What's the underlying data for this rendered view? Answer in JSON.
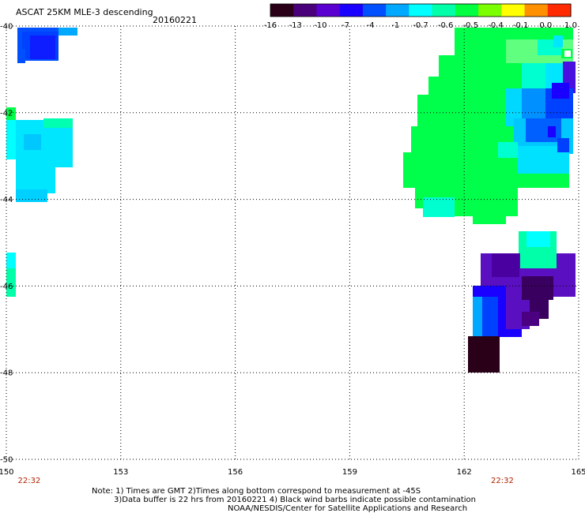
{
  "header": {
    "title": "ASCAT 25KM MLE-3 descending",
    "date": "20160221"
  },
  "colorbar": {
    "labels": [
      "-16",
      "-13",
      "-10",
      "-7",
      "-4",
      "-1",
      "-0.7",
      "-0.6",
      "-0.5",
      "-0.4",
      "-0.1",
      "0.0",
      "1.0"
    ],
    "colors": [
      "#2a0019",
      "#4a007a",
      "#5a00d0",
      "#1a00ff",
      "#0050ff",
      "#00a8ff",
      "#00ffff",
      "#00ffa8",
      "#00ff40",
      "#7cff00",
      "#ffff00",
      "#ff9000",
      "#ff2a00"
    ]
  },
  "map": {
    "lon_ticks": [
      "150",
      "153",
      "156",
      "159",
      "162",
      "165"
    ],
    "lat_ticks": [
      "-40",
      "-42",
      "-44",
      "-46",
      "-48",
      "-50"
    ],
    "lon_range": [
      150,
      165
    ],
    "lat_range": [
      -40,
      -50
    ],
    "times": [
      {
        "label": "22:32",
        "color": "#b02000",
        "lon": 150.6
      },
      {
        "label": "22:32",
        "color": "#b02000",
        "lon": 163.0
      }
    ]
  },
  "swaths": {
    "legend_colors": {
      "green": "#00ff4a",
      "cyan": "#00ffff",
      "light_blue": "#00b4ff",
      "blue": "#0040ff",
      "deep_blue": "#1a00ff",
      "purple": "#5a10c0",
      "dark_purple": "#3a0060",
      "black_purple": "#2a0019"
    }
  },
  "footer": {
    "line1": "Note: 1) Times are GMT 2)Times along bottom correspond to measurement at -45S",
    "line2": "3)Data buffer is 22 hrs from 20160221 4) Black wind barbs indicate possible contamination",
    "line3": "NOAA/NESDIS/Center for Satellite Applications and Research"
  }
}
